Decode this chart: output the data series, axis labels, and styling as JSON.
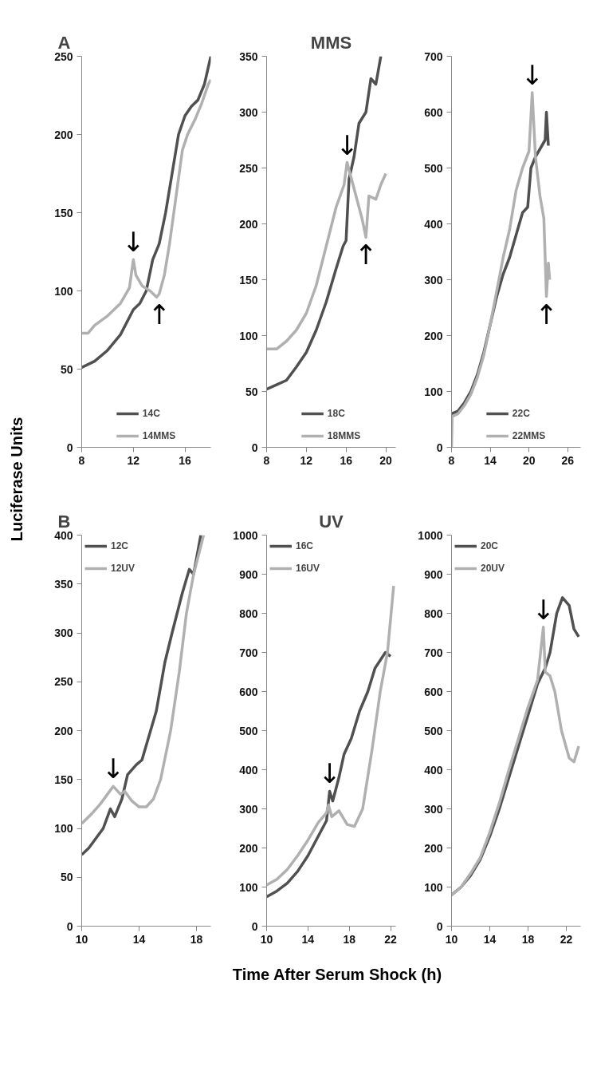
{
  "chart_data": [
    {
      "type": "line",
      "ylabel": "Luciferase Units",
      "annotations": [
        "A",
        {
          "text": "↓",
          "x": 12,
          "y": 120
        },
        {
          "text": "↑",
          "x": 14,
          "y": 96
        }
      ],
      "xlim": [
        8,
        18
      ],
      "ylim": [
        0,
        250
      ],
      "xticks": [
        8,
        12,
        16
      ],
      "yticks": [
        0,
        50,
        100,
        150,
        200,
        250
      ],
      "grid": false,
      "legend": "bottom",
      "line_style": "solid",
      "marker": "none",
      "series": [
        {
          "name": "14C",
          "color": "#505050",
          "x": [
            8,
            9,
            10,
            11,
            12,
            12.5,
            13,
            13.5,
            14,
            14.5,
            15,
            15.5,
            16,
            16.5,
            17,
            17.5,
            18
          ],
          "values": [
            51,
            55,
            62,
            72,
            88,
            92,
            100,
            120,
            130,
            150,
            175,
            200,
            212,
            218,
            222,
            232,
            250
          ]
        },
        {
          "name": "14MMS",
          "color": "#b0b0b0",
          "x": [
            8,
            8.5,
            9,
            10,
            11,
            11.7,
            12,
            12.2,
            12.7,
            13.3,
            13.8,
            14,
            14.4,
            14.8,
            15.3,
            15.8,
            16.2,
            16.8,
            17.3,
            17.8,
            18
          ],
          "values": [
            73,
            73,
            78,
            84,
            92,
            102,
            120,
            110,
            103,
            100,
            96,
            98,
            110,
            130,
            160,
            190,
            200,
            210,
            220,
            232,
            235
          ]
        }
      ]
    },
    {
      "type": "line",
      "title": "MMS",
      "annotations": [
        {
          "text": "↓",
          "x": 16.1,
          "y": 255
        },
        {
          "text": "↑",
          "x": 18,
          "y": 188
        }
      ],
      "xlim": [
        8,
        21
      ],
      "ylim": [
        0,
        350
      ],
      "xticks": [
        8,
        12,
        16,
        20
      ],
      "yticks": [
        0,
        50,
        100,
        150,
        200,
        250,
        300,
        350
      ],
      "grid": false,
      "legend": "bottom",
      "line_style": "solid",
      "marker": "none",
      "series": [
        {
          "name": "18C",
          "color": "#505050",
          "x": [
            8,
            9,
            10,
            11,
            12,
            13,
            14,
            15,
            15.7,
            16,
            16.3,
            16.8,
            17.3,
            18,
            18.5,
            19,
            19.5
          ],
          "values": [
            52,
            56,
            60,
            72,
            85,
            105,
            130,
            160,
            180,
            185,
            240,
            260,
            290,
            300,
            330,
            325,
            350
          ]
        },
        {
          "name": "18MMS",
          "color": "#b0b0b0",
          "x": [
            8,
            9,
            10,
            11,
            12,
            13,
            14,
            15,
            15.8,
            16.1,
            16.4,
            17,
            17.6,
            18,
            18.3,
            19,
            19.5,
            20
          ],
          "values": [
            88,
            88,
            95,
            105,
            120,
            145,
            180,
            215,
            235,
            255,
            245,
            225,
            205,
            188,
            225,
            222,
            235,
            245
          ]
        }
      ]
    },
    {
      "type": "line",
      "annotations": [
        {
          "text": "↓",
          "x": 20.5,
          "y": 635
        },
        {
          "text": "↑",
          "x": 22.7,
          "y": 270
        }
      ],
      "xlim": [
        8,
        28
      ],
      "ylim": [
        0,
        700
      ],
      "xticks": [
        8,
        14,
        20,
        26
      ],
      "yticks": [
        0,
        100,
        200,
        300,
        400,
        500,
        600,
        700
      ],
      "grid": false,
      "legend": "bottom",
      "line_style": "solid",
      "marker": "none",
      "series": [
        {
          "name": "22C",
          "color": "#505050",
          "x": [
            8,
            9,
            10,
            11,
            12,
            13,
            14,
            15,
            16,
            17,
            18,
            19,
            19.8,
            20.3,
            21,
            22,
            22.5,
            22.7,
            23
          ],
          "values": [
            60,
            65,
            80,
            100,
            130,
            170,
            220,
            270,
            310,
            340,
            380,
            420,
            430,
            500,
            520,
            540,
            550,
            600,
            540
          ]
        },
        {
          "name": "22MMS",
          "color": "#b0b0b0",
          "x": [
            8,
            8.1,
            9,
            10,
            11,
            12,
            13,
            14,
            15,
            16,
            17,
            18,
            19,
            20,
            20.5,
            21,
            21.7,
            22.3,
            22.7,
            23,
            23.2
          ],
          "values": [
            0,
            55,
            60,
            75,
            95,
            125,
            165,
            220,
            280,
            340,
            390,
            460,
            500,
            530,
            635,
            520,
            450,
            410,
            270,
            330,
            300
          ]
        }
      ]
    },
    {
      "type": "line",
      "annotations": [
        "B",
        {
          "text": "↓",
          "x": 12.2,
          "y": 143
        }
      ],
      "xlim": [
        10,
        19
      ],
      "ylim": [
        0,
        400
      ],
      "xticks": [
        10,
        14,
        18
      ],
      "yticks": [
        0,
        50,
        100,
        150,
        200,
        250,
        300,
        350,
        400
      ],
      "grid": false,
      "legend": "top left",
      "line_style": "solid",
      "marker": "none",
      "series": [
        {
          "name": "12C",
          "color": "#505050",
          "x": [
            10,
            10.5,
            11,
            11.5,
            12,
            12.3,
            12.8,
            13.2,
            13.8,
            14.2,
            14.6,
            15.2,
            15.8,
            16.3,
            17,
            17.5,
            17.8,
            18.3
          ],
          "values": [
            73,
            80,
            90,
            100,
            120,
            112,
            130,
            155,
            165,
            170,
            190,
            220,
            270,
            300,
            340,
            365,
            360,
            400
          ]
        },
        {
          "name": "12UV",
          "color": "#b0b0b0",
          "x": [
            10,
            10.7,
            11.3,
            11.8,
            12.2,
            12.7,
            13,
            13.5,
            14,
            14.5,
            15,
            15.5,
            16.2,
            16.8,
            17.3,
            17.8,
            18.5
          ],
          "values": [
            105,
            115,
            125,
            135,
            143,
            135,
            138,
            128,
            122,
            122,
            130,
            150,
            200,
            260,
            320,
            360,
            400
          ]
        }
      ]
    },
    {
      "type": "line",
      "title": "UV",
      "xlabel": "Time After Serum Shock (h)",
      "annotations": [
        {
          "text": "↓",
          "x": 16.1,
          "y": 345
        }
      ],
      "xlim": [
        10,
        22.5
      ],
      "ylim": [
        0,
        1000
      ],
      "xticks": [
        10,
        14,
        18,
        22
      ],
      "yticks": [
        0,
        100,
        200,
        300,
        400,
        500,
        600,
        700,
        800,
        900,
        1000
      ],
      "grid": false,
      "legend": "top left",
      "line_style": "solid",
      "marker": "none",
      "series": [
        {
          "name": "16C",
          "color": "#505050",
          "x": [
            10,
            11,
            12,
            13,
            14,
            15,
            15.8,
            16.1,
            16.4,
            17,
            17.5,
            18.2,
            19,
            19.8,
            20.5,
            21.5,
            22
          ],
          "values": [
            75,
            90,
            110,
            140,
            180,
            230,
            270,
            345,
            320,
            380,
            440,
            480,
            550,
            600,
            660,
            700,
            690
          ]
        },
        {
          "name": "16UV",
          "color": "#b0b0b0",
          "x": [
            10,
            11,
            12,
            13,
            14,
            15,
            15.8,
            16,
            16.3,
            17,
            17.8,
            18.5,
            19.3,
            20.2,
            21,
            21.7,
            22.3
          ],
          "values": [
            105,
            120,
            145,
            180,
            220,
            265,
            290,
            310,
            280,
            295,
            260,
            255,
            300,
            450,
            600,
            700,
            870
          ]
        }
      ]
    },
    {
      "type": "line",
      "annotations": [
        {
          "text": "↓",
          "x": 19.6,
          "y": 765
        }
      ],
      "xlim": [
        10,
        23.5
      ],
      "ylim": [
        0,
        1000
      ],
      "xticks": [
        10,
        14,
        18,
        22
      ],
      "yticks": [
        0,
        100,
        200,
        300,
        400,
        500,
        600,
        700,
        800,
        900,
        1000
      ],
      "grid": false,
      "legend": "top left",
      "line_style": "solid",
      "marker": "none",
      "series": [
        {
          "name": "20C",
          "color": "#505050",
          "x": [
            10,
            11,
            12,
            13,
            14,
            15,
            16,
            17,
            18,
            19,
            19.8,
            20.3,
            21,
            21.6,
            22.3,
            22.8,
            23.3
          ],
          "values": [
            80,
            100,
            130,
            170,
            230,
            300,
            380,
            460,
            540,
            620,
            660,
            700,
            800,
            840,
            820,
            760,
            740
          ]
        },
        {
          "name": "20UV",
          "color": "#b0b0b0",
          "x": [
            10,
            11,
            12,
            13,
            14,
            15,
            16,
            17,
            18,
            19,
            19.6,
            19.8,
            20.3,
            20.8,
            21.5,
            22.3,
            22.8,
            23.3
          ],
          "values": [
            80,
            100,
            135,
            175,
            240,
            315,
            400,
            480,
            560,
            630,
            765,
            650,
            640,
            600,
            500,
            430,
            420,
            460
          ]
        }
      ]
    }
  ]
}
